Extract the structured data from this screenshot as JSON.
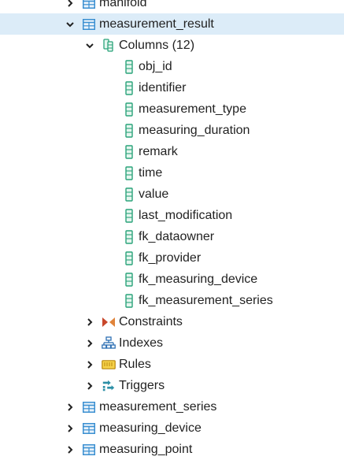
{
  "tree": {
    "top_partial": {
      "label": "manifold"
    },
    "table": {
      "label": "measurement_result",
      "columns_node": {
        "label": "Columns (12)",
        "columns": [
          "obj_id",
          "identifier",
          "measurement_type",
          "measuring_duration",
          "remark",
          "time",
          "value",
          "last_modification",
          "fk_dataowner",
          "fk_provider",
          "fk_measuring_device",
          "fk_measurement_series"
        ]
      },
      "constraints": {
        "label": "Constraints"
      },
      "indexes": {
        "label": "Indexes"
      },
      "rules": {
        "label": "Rules"
      },
      "triggers": {
        "label": "Triggers"
      }
    },
    "siblings": [
      {
        "label": "measurement_series"
      },
      {
        "label": "measuring_device"
      },
      {
        "label": "measuring_point"
      }
    ]
  },
  "colors": {
    "selected_row": "#dcecf8",
    "table_icon": "#3a8fd1",
    "column_icon": "#2aa37a",
    "constraints_icon": "#c8472b",
    "indexes_icon": "#2d6fb3",
    "rules_icon": "#e3b21a",
    "triggers_icon": "#2b8fa6"
  },
  "icons": {
    "table": "table-icon",
    "columns": "columns-icon",
    "column": "column-icon",
    "constraints": "constraints-icon",
    "indexes": "indexes-icon",
    "rules": "rules-icon",
    "triggers": "triggers-icon",
    "expanded": "chevron-down-icon",
    "collapsed": "chevron-right-icon"
  }
}
